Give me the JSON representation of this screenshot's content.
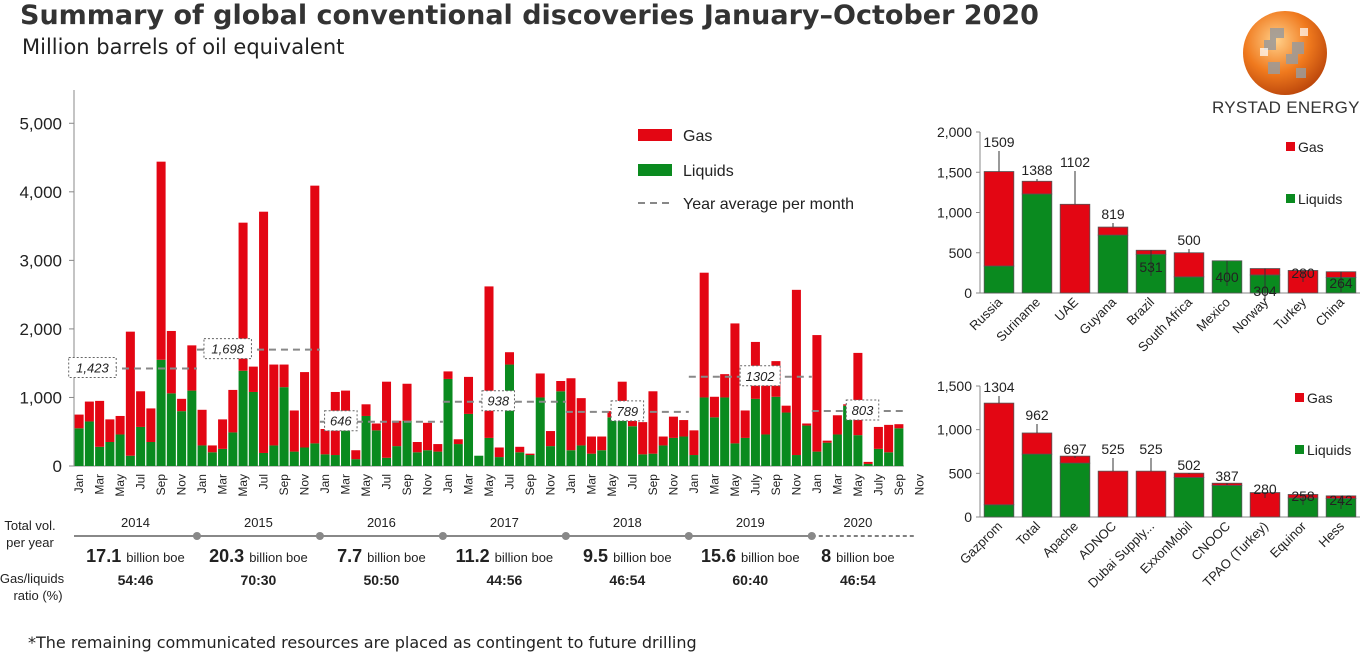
{
  "title": "Summary of global conventional discoveries January–October 2020",
  "subtitle": "Million barrels of oil equivalent",
  "company": "RYSTAD ENERGY",
  "footnote": "*The remaining communicated resources are placed as contingent to future drilling",
  "colors": {
    "gas": "#e30613",
    "liquids": "#0a8a1f",
    "avg_line": "#888888",
    "axis": "#888888",
    "text": "#222222"
  },
  "chart_data": [
    {
      "type": "bar",
      "stacked": true,
      "title": "Monthly conventional discoveries 2014–2020",
      "ylabel": "Million barrels of oil equivalent",
      "ylim": [
        0,
        5500
      ],
      "yticks": [
        0,
        1000,
        2000,
        3000,
        4000,
        5000
      ],
      "ytick_labels": [
        "0",
        "1,000",
        "2,000",
        "3,000",
        "4,000",
        "5,000"
      ],
      "month_labels": [
        "Jan",
        "Mar",
        "May",
        "Jul",
        "Sep",
        "Nov",
        "Jan",
        "Mar",
        "May",
        "Jul",
        "Sep",
        "Nov",
        "Jan",
        "Mar",
        "May",
        "Jul",
        "Sep",
        "Nov",
        "Jan",
        "Mar",
        "May",
        "Jul",
        "Sep",
        "Nov",
        "Jan",
        "Mar",
        "May",
        "Jul",
        "Sep",
        "Nov",
        "Jan",
        "Mar",
        "May",
        "July",
        "Sep",
        "Nov",
        "Jan",
        "Mar",
        "May",
        "July",
        "Sep",
        "Nov"
      ],
      "series": [
        {
          "name": "Liquids",
          "values": [
            550,
            650,
            280,
            350,
            460,
            150,
            570,
            350,
            1550,
            1060,
            800,
            1100,
            300,
            200,
            250,
            490,
            1390,
            1080,
            190,
            300,
            1150,
            210,
            270,
            330,
            170,
            160,
            580,
            100,
            730,
            520,
            120,
            290,
            660,
            200,
            230,
            210,
            1270,
            320,
            760,
            150,
            410,
            130,
            1480,
            200,
            160,
            1000,
            290,
            1090,
            230,
            300,
            180,
            230,
            710,
            790,
            580,
            170,
            180,
            300,
            410,
            430,
            160,
            1000,
            710,
            1000,
            330,
            410,
            980,
            460,
            1010,
            780,
            160,
            590,
            210,
            340,
            460,
            880,
            450,
            30,
            250,
            200,
            550
          ]
        },
        {
          "name": "Gas",
          "values": [
            200,
            290,
            670,
            330,
            270,
            1810,
            520,
            490,
            2890,
            910,
            180,
            660,
            520,
            100,
            430,
            620,
            2160,
            370,
            3520,
            1180,
            330,
            600,
            1100,
            3760,
            370,
            920,
            520,
            130,
            170,
            100,
            1110,
            370,
            540,
            150,
            400,
            110,
            110,
            70,
            540,
            0,
            2210,
            140,
            180,
            80,
            20,
            350,
            220,
            150,
            1050,
            690,
            250,
            200,
            90,
            440,
            80,
            470,
            910,
            130,
            310,
            240,
            360,
            1820,
            300,
            340,
            1750,
            400,
            830,
            780,
            520,
            100,
            2410,
            30,
            1700,
            30,
            280,
            20,
            1200,
            30,
            320,
            400,
            60
          ]
        }
      ],
      "legend": [
        "Gas",
        "Liquids",
        "Year average per month"
      ],
      "year_averages": [
        {
          "year": "2014",
          "label": "1,423",
          "value": 1423
        },
        {
          "year": "2015",
          "label": "1,698",
          "value": 1698
        },
        {
          "year": "2016",
          "label": "646",
          "value": 646
        },
        {
          "year": "2017",
          "label": "938",
          "value": 938
        },
        {
          "year": "2018",
          "label": "789",
          "value": 789
        },
        {
          "year": "2019",
          "label": "1302",
          "value": 1302
        },
        {
          "year": "2020",
          "label": "803",
          "value": 803
        }
      ]
    },
    {
      "type": "bar",
      "stacked": true,
      "title": "By country",
      "ylim": [
        0,
        2000
      ],
      "yticks": [
        0,
        500,
        1000,
        1500,
        2000
      ],
      "ytick_labels": [
        "0",
        "500",
        "1,000",
        "1,500",
        "2,000"
      ],
      "categories": [
        "Russia",
        "Suriname",
        "UAE",
        "Guyana",
        "Brazil",
        "South Africa",
        "Mexico",
        "Norway",
        "Turkey",
        "China"
      ],
      "totals": [
        "1509",
        "1388",
        "1102",
        "819",
        "531",
        "500",
        "400",
        "304",
        "280",
        "264"
      ],
      "series": [
        {
          "name": "Liquids",
          "values": [
            335,
            1230,
            0,
            719,
            481,
            200,
            400,
            224,
            0,
            194
          ]
        },
        {
          "name": "Gas",
          "values": [
            1174,
            158,
            1102,
            100,
            50,
            300,
            0,
            80,
            280,
            70
          ]
        }
      ],
      "legend": [
        "Gas",
        "Liquids"
      ]
    },
    {
      "type": "bar",
      "stacked": true,
      "title": "By company",
      "ylim": [
        0,
        1500
      ],
      "yticks": [
        0,
        500,
        1000,
        1500
      ],
      "ytick_labels": [
        "0",
        "500",
        "1,000",
        "1,500"
      ],
      "categories": [
        "Gazprom",
        "Total",
        "Apache",
        "ADNOC",
        "Dubai Supply...",
        "ExxonMobil",
        "CNOOC",
        "TPAO (Turkey)",
        "Equinor",
        "Hess"
      ],
      "totals": [
        "1304",
        "962",
        "697",
        "525",
        "525",
        "502",
        "387",
        "280",
        "258",
        "242"
      ],
      "series": [
        {
          "name": "Liquids",
          "values": [
            140,
            720,
            617,
            0,
            0,
            452,
            362,
            0,
            218,
            212
          ]
        },
        {
          "name": "Gas",
          "values": [
            1164,
            242,
            80,
            525,
            525,
            50,
            25,
            280,
            40,
            30
          ]
        }
      ],
      "legend": [
        "Gas",
        "Liquids"
      ]
    }
  ],
  "summary": {
    "total_label": "Total vol.\nper year",
    "ratio_label": "Gas/liquids\nratio (%)",
    "unit": "billion boe",
    "years": [
      {
        "year": "2014",
        "total": "17.1",
        "ratio": "54:46"
      },
      {
        "year": "2015",
        "total": "20.3",
        "ratio": "70:30"
      },
      {
        "year": "2016",
        "total": "7.7",
        "ratio": "50:50"
      },
      {
        "year": "2017",
        "total": "11.2",
        "ratio": "44:56"
      },
      {
        "year": "2018",
        "total": "9.5",
        "ratio": "46:54"
      },
      {
        "year": "2019",
        "total": "15.6",
        "ratio": "60:40"
      },
      {
        "year": "2020",
        "total": "8",
        "ratio": "46:54"
      }
    ]
  }
}
